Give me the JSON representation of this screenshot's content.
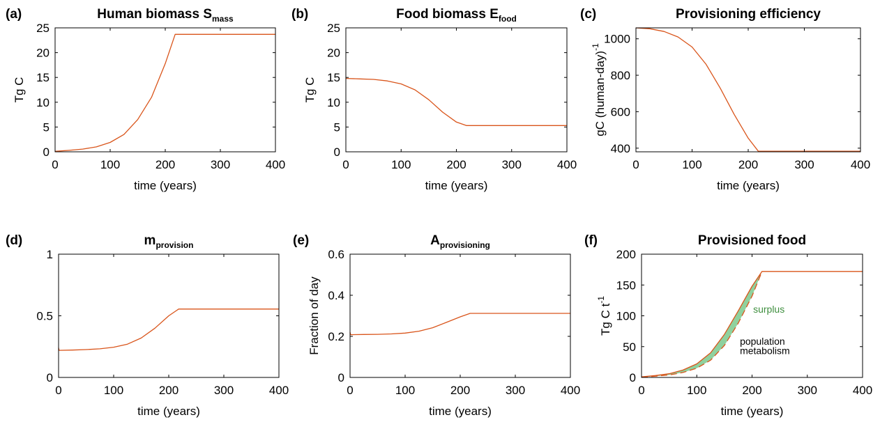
{
  "colors": {
    "line": "#d9541a",
    "surplus_fill": "#8fd19e",
    "surplus_text": "#3f8f3f",
    "axis": "#000000"
  },
  "chart_data": [
    {
      "type": "line",
      "panel": "(a)",
      "title": "Human biomass S",
      "title_sub": "mass",
      "xlabel": "time (years)",
      "ylabel": "Tg C",
      "xlim": [
        0,
        400
      ],
      "ylim": [
        0,
        25
      ],
      "xticks": [
        0,
        100,
        200,
        300,
        400
      ],
      "yticks": [
        0,
        5,
        10,
        15,
        20,
        25
      ],
      "series": [
        {
          "x": [
            0,
            25,
            50,
            75,
            100,
            125,
            150,
            175,
            200,
            218,
            250,
            300,
            350,
            400
          ],
          "y": [
            0.1,
            0.3,
            0.55,
            1.0,
            1.9,
            3.5,
            6.5,
            11.0,
            17.8,
            23.7,
            23.7,
            23.7,
            23.7,
            23.7
          ]
        }
      ]
    },
    {
      "type": "line",
      "panel": "(b)",
      "title": "Food biomass E",
      "title_sub": "food",
      "xlabel": "time (years)",
      "ylabel": "Tg C",
      "xlim": [
        0,
        400
      ],
      "ylim": [
        0,
        25
      ],
      "xticks": [
        0,
        100,
        200,
        300,
        400
      ],
      "yticks": [
        0,
        5,
        10,
        15,
        20,
        25
      ],
      "series": [
        {
          "x": [
            0,
            25,
            50,
            75,
            100,
            125,
            150,
            175,
            200,
            218,
            250,
            300,
            350,
            400
          ],
          "y": [
            14.8,
            14.7,
            14.6,
            14.3,
            13.7,
            12.5,
            10.5,
            8.0,
            6.0,
            5.3,
            5.3,
            5.3,
            5.3,
            5.3
          ]
        }
      ]
    },
    {
      "type": "line",
      "panel": "(c)",
      "title": "Provisioning efficiency",
      "xlabel": "time (years)",
      "ylabel": "gC (human-day)",
      "ylabel_sup": "-1",
      "xlim": [
        0,
        400
      ],
      "ylim": [
        380,
        1060
      ],
      "xticks": [
        0,
        100,
        200,
        300,
        400
      ],
      "yticks": [
        400,
        600,
        800,
        1000
      ],
      "series": [
        {
          "x": [
            0,
            25,
            50,
            75,
            100,
            125,
            150,
            175,
            200,
            218,
            250,
            300,
            350,
            400
          ],
          "y": [
            1060,
            1055,
            1040,
            1010,
            955,
            860,
            730,
            585,
            455,
            383,
            383,
            383,
            383,
            383
          ]
        }
      ]
    },
    {
      "type": "line",
      "panel": "(d)",
      "title": "m",
      "title_sub": "provision",
      "xlabel": "time (years)",
      "ylabel": "",
      "xlim": [
        0,
        400
      ],
      "ylim": [
        0,
        1
      ],
      "xticks": [
        0,
        100,
        200,
        300,
        400
      ],
      "yticks": [
        0,
        0.5,
        1
      ],
      "series": [
        {
          "x": [
            0,
            1,
            25,
            50,
            75,
            100,
            125,
            150,
            175,
            200,
            218,
            250,
            300,
            350,
            400
          ],
          "y": [
            0.24,
            0.22,
            0.222,
            0.226,
            0.232,
            0.245,
            0.27,
            0.32,
            0.4,
            0.5,
            0.555,
            0.555,
            0.555,
            0.555,
            0.555
          ]
        }
      ]
    },
    {
      "type": "line",
      "panel": "(e)",
      "title": "A",
      "title_sub": "provisioning",
      "xlabel": "time (years)",
      "ylabel": "Fraction of day",
      "xlim": [
        0,
        400
      ],
      "ylim": [
        0,
        0.6
      ],
      "xticks": [
        0,
        100,
        200,
        300,
        400
      ],
      "yticks": [
        0,
        0.2,
        0.4,
        0.6
      ],
      "series": [
        {
          "x": [
            0,
            1,
            25,
            50,
            75,
            100,
            125,
            150,
            175,
            200,
            218,
            250,
            300,
            350,
            400
          ],
          "y": [
            0.22,
            0.208,
            0.209,
            0.21,
            0.212,
            0.216,
            0.225,
            0.242,
            0.268,
            0.295,
            0.312,
            0.312,
            0.312,
            0.312,
            0.312
          ]
        }
      ]
    },
    {
      "type": "area",
      "panel": "(f)",
      "title": "Provisioned food",
      "xlabel": "time (years)",
      "ylabel": "Tg C t",
      "ylabel_sup": "-1",
      "xlim": [
        0,
        400
      ],
      "ylim": [
        0,
        200
      ],
      "xticks": [
        0,
        100,
        200,
        300,
        400
      ],
      "yticks": [
        0,
        50,
        100,
        150,
        200
      ],
      "annotations": [
        "surplus",
        "population",
        "metabolism"
      ],
      "series": [
        {
          "style": "solid",
          "x": [
            0,
            25,
            50,
            75,
            100,
            125,
            150,
            175,
            200,
            218,
            250,
            300,
            350,
            400
          ],
          "y": [
            1,
            3,
            6,
            12,
            22,
            40,
            70,
            108,
            148,
            172,
            172,
            172,
            172,
            172
          ]
        },
        {
          "style": "dashed",
          "x": [
            0,
            25,
            50,
            75,
            100,
            125,
            150,
            175,
            200,
            218
          ],
          "y": [
            0.5,
            2,
            4,
            8,
            15,
            28,
            52,
            88,
            132,
            172
          ]
        }
      ]
    }
  ]
}
